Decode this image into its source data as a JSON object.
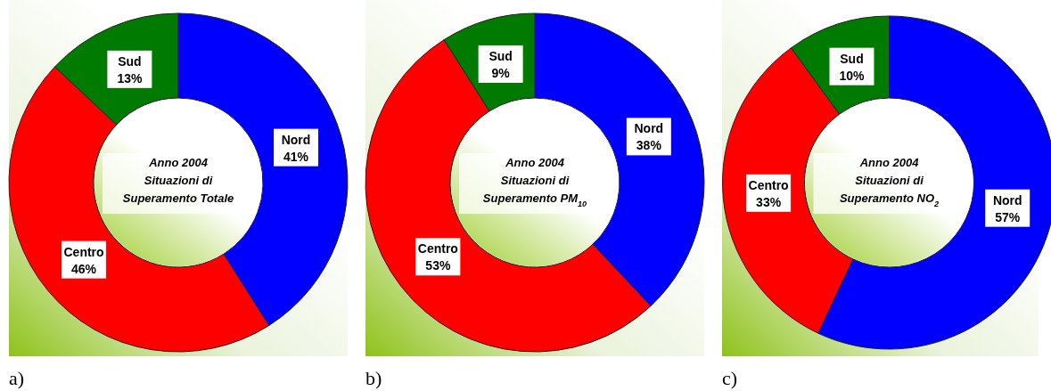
{
  "chart_data": [
    {
      "type": "donut",
      "title": "Anno 2004\nSituazioni di\nSuperamento Totale",
      "categories": [
        "Nord",
        "Centro",
        "Sud"
      ],
      "values": [
        41,
        46,
        13
      ],
      "colors": [
        "#0000ff",
        "#ff0000",
        "#007a00"
      ],
      "value_labels": [
        "41%",
        "46%",
        "13%"
      ],
      "annotations": [
        "a)"
      ]
    },
    {
      "type": "donut",
      "title": "Anno 2004\nSituazioni di\nSuperamento PM$_{10}$",
      "categories": [
        "Nord",
        "Centro",
        "Sud"
      ],
      "values": [
        38,
        53,
        9
      ],
      "colors": [
        "#0000ff",
        "#ff0000",
        "#007a00"
      ],
      "value_labels": [
        "38%",
        "53%",
        "9%"
      ],
      "annotations": [
        "b)"
      ]
    },
    {
      "type": "donut",
      "title": "Anno 2004\nSituazioni di\nSuperamento NO$_{2}$",
      "categories": [
        "Nord",
        "Centro",
        "Sud"
      ],
      "values": [
        57,
        33,
        10
      ],
      "colors": [
        "#0000ff",
        "#ff0000",
        "#007a00"
      ],
      "value_labels": [
        "57%",
        "33%",
        "10%"
      ],
      "annotations": [
        "c)"
      ]
    }
  ]
}
